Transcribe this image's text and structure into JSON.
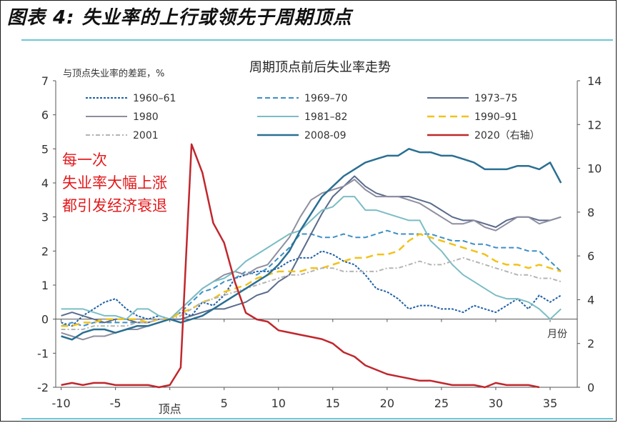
{
  "header": {
    "title": "图表 4: 失业率的上行或领先于周期顶点"
  },
  "chart_data": {
    "type": "line",
    "title": "周期顶点前后失业率走势",
    "ylabel": "与顶点失业率的差距，%",
    "xlabel": "月份",
    "y2label": "",
    "x_tick_labels": [
      "-10",
      "-5",
      "顶点",
      "5",
      "10",
      "15",
      "20",
      "25",
      "30",
      "35"
    ],
    "x_tick_values": [
      -10,
      -5,
      0,
      5,
      10,
      15,
      20,
      25,
      30,
      35
    ],
    "xlim": [
      -10.5,
      37.5
    ],
    "ylim": [
      -2,
      7
    ],
    "y2lim": [
      0,
      14
    ],
    "y_ticks": [
      -2,
      -1,
      0,
      1,
      2,
      3,
      4,
      5,
      6,
      7
    ],
    "y2_ticks": [
      0,
      2,
      4,
      6,
      8,
      10,
      12,
      14
    ],
    "legend_position": "top",
    "annotation": {
      "lines": [
        "每一次",
        "失业率大幅上涨",
        "都引发经济衰退"
      ],
      "color": "#e31a1c"
    },
    "series": [
      {
        "name": "1960–61",
        "color": "#1f5fa6",
        "dash": "3,2",
        "width": 2,
        "axis": "left",
        "x": [
          -10,
          -9,
          -8,
          -7,
          -6,
          -5,
          -4,
          -3,
          -2,
          -1,
          0,
          1,
          2,
          3,
          4,
          5,
          6,
          7,
          8,
          9,
          10,
          11,
          12,
          13,
          14,
          15,
          16,
          17,
          18,
          19,
          20,
          21,
          22,
          23,
          24,
          25,
          26,
          27,
          28,
          29,
          30,
          31,
          32,
          33,
          34,
          35,
          36
        ],
        "y": [
          -0.1,
          -0.2,
          0.1,
          0.3,
          0.5,
          0.6,
          0.3,
          0.1,
          0,
          0.1,
          0,
          0.2,
          0.1,
          0.5,
          0.4,
          0.7,
          1.2,
          1.3,
          1.4,
          1.4,
          1.5,
          1.7,
          1.8,
          1.8,
          2,
          1.9,
          1.7,
          1.6,
          1.3,
          0.9,
          0.8,
          0.6,
          0.3,
          0.4,
          0.4,
          0.3,
          0.3,
          0.2,
          0.4,
          0.3,
          0.2,
          0.4,
          0.6,
          0.3,
          0.7,
          0.5,
          0.7
        ]
      },
      {
        "name": "1969–70",
        "color": "#3d8fc4",
        "dash": "7,4",
        "width": 2,
        "axis": "left",
        "x": [
          -10,
          -9,
          -8,
          -7,
          -6,
          -5,
          -4,
          -3,
          -2,
          -1,
          0,
          1,
          2,
          3,
          4,
          5,
          6,
          7,
          8,
          9,
          10,
          11,
          12,
          13,
          14,
          15,
          16,
          17,
          18,
          19,
          20,
          21,
          22,
          23,
          24,
          25,
          26,
          27,
          28,
          29,
          30,
          31,
          32,
          33,
          34,
          35,
          36
        ],
        "y": [
          -0.2,
          -0.1,
          -0.2,
          -0.1,
          -0.1,
          -0.1,
          -0.1,
          -0.1,
          -0.1,
          0,
          0,
          0.2,
          0.5,
          0.8,
          0.9,
          1.1,
          1.2,
          1.4,
          1.3,
          1.5,
          1.8,
          2.1,
          2.5,
          2.5,
          2.4,
          2.4,
          2.5,
          2.4,
          2.4,
          2.5,
          2.6,
          2.5,
          2.5,
          2.5,
          2.5,
          2.4,
          2.3,
          2.3,
          2.2,
          2.2,
          2.1,
          2.1,
          2.1,
          2,
          2,
          1.7,
          1.4
        ]
      },
      {
        "name": "1973–75",
        "color": "#5a6b8c",
        "dash": "",
        "width": 2,
        "axis": "left",
        "x": [
          -10,
          -9,
          -8,
          -7,
          -6,
          -5,
          -4,
          -3,
          -2,
          -1,
          0,
          1,
          2,
          3,
          4,
          5,
          6,
          7,
          8,
          9,
          10,
          11,
          12,
          13,
          14,
          15,
          16,
          17,
          18,
          19,
          20,
          21,
          22,
          23,
          24,
          25,
          26,
          27,
          28,
          29,
          30,
          31,
          32,
          33,
          34,
          35,
          36
        ],
        "y": [
          0.1,
          0.2,
          0.1,
          0,
          -0.1,
          0,
          0,
          -0.1,
          -0.1,
          0,
          0,
          0,
          0.1,
          0.2,
          0.3,
          0.3,
          0.4,
          0.5,
          0.7,
          0.8,
          1.1,
          1.3,
          1.9,
          2.5,
          3.1,
          3.6,
          3.9,
          4.2,
          3.9,
          3.7,
          3.6,
          3.6,
          3.6,
          3.5,
          3.4,
          3.2,
          3,
          2.9,
          2.9,
          2.8,
          2.7,
          2.9,
          3,
          3,
          2.9,
          2.9,
          3
        ]
      },
      {
        "name": "1980",
        "color": "#8e8ea0",
        "dash": "",
        "width": 2,
        "axis": "left",
        "x": [
          -10,
          -9,
          -8,
          -7,
          -6,
          -5,
          -4,
          -3,
          -2,
          -1,
          0,
          1,
          2,
          3,
          4,
          5,
          6,
          7,
          8,
          9,
          10,
          11,
          12,
          13,
          14,
          15,
          16,
          17,
          18,
          19,
          20,
          21,
          22,
          23,
          24,
          25,
          26,
          27,
          28,
          29,
          30,
          31,
          32,
          33,
          34,
          35,
          36
        ],
        "y": [
          -0.4,
          -0.5,
          -0.6,
          -0.5,
          -0.5,
          -0.4,
          -0.3,
          -0.3,
          -0.2,
          -0.1,
          0,
          0.3,
          0.6,
          0.9,
          1.1,
          1.3,
          1.4,
          1.3,
          1.5,
          1.6,
          2,
          2.4,
          3,
          3.5,
          3.7,
          3.8,
          3.9,
          4.1,
          3.8,
          3.6,
          3.6,
          3.6,
          3.5,
          3.4,
          3.2,
          3,
          2.8,
          2.8,
          2.9,
          2.7,
          2.6,
          2.8,
          3,
          3,
          2.8,
          2.9,
          3
        ]
      },
      {
        "name": "1981–82",
        "color": "#7bbdc4",
        "dash": "",
        "width": 2,
        "axis": "left",
        "x": [
          -10,
          -9,
          -8,
          -7,
          -6,
          -5,
          -4,
          -3,
          -2,
          -1,
          0,
          1,
          2,
          3,
          4,
          5,
          6,
          7,
          8,
          9,
          10,
          11,
          12,
          13,
          14,
          15,
          16,
          17,
          18,
          19,
          20,
          21,
          22,
          23,
          24,
          25,
          26,
          27,
          28,
          29,
          30,
          31,
          32,
          33,
          34,
          35,
          36
        ],
        "y": [
          0.3,
          0.3,
          0.3,
          0.2,
          0.1,
          0.1,
          0,
          0.3,
          0.3,
          0.1,
          0,
          0.3,
          0.6,
          0.9,
          1.1,
          1.2,
          1.4,
          1.7,
          1.9,
          2.1,
          2.3,
          2.5,
          2.6,
          2.9,
          3.2,
          3.3,
          3.6,
          3.6,
          3.2,
          3.2,
          3.1,
          3,
          2.9,
          2.9,
          2.3,
          2,
          1.6,
          1.3,
          1.1,
          0.9,
          0.7,
          0.6,
          0.6,
          0.5,
          0.3,
          0,
          0.3
        ]
      },
      {
        "name": "1990–91",
        "color": "#f2c21a",
        "dash": "10,6",
        "width": 2.5,
        "axis": "left",
        "x": [
          -10,
          -9,
          -8,
          -7,
          -6,
          -5,
          -4,
          -3,
          -2,
          -1,
          0,
          1,
          2,
          3,
          4,
          5,
          6,
          7,
          8,
          9,
          10,
          11,
          12,
          13,
          14,
          15,
          16,
          17,
          18,
          19,
          20,
          21,
          22,
          23,
          24,
          25,
          26,
          27,
          28,
          29,
          30,
          31,
          32,
          33,
          34,
          35,
          36
        ],
        "y": [
          -0.2,
          -0.2,
          -0.1,
          -0.1,
          0,
          0,
          0,
          0,
          -0.1,
          0,
          0,
          0.2,
          0.3,
          0.5,
          0.6,
          0.8,
          0.9,
          1,
          1.2,
          1.3,
          1.4,
          1.4,
          1.4,
          1.5,
          1.5,
          1.6,
          1.7,
          1.8,
          1.8,
          1.9,
          1.9,
          2,
          2.3,
          2.5,
          2.4,
          2.3,
          2.2,
          2.1,
          2,
          1.9,
          1.7,
          1.6,
          1.6,
          1.5,
          1.6,
          1.5,
          1.4
        ]
      },
      {
        "name": "2001",
        "color": "#b4b4b4",
        "dash": "6,3,2,3",
        "width": 2,
        "axis": "left",
        "x": [
          -10,
          -9,
          -8,
          -7,
          -6,
          -5,
          -4,
          -3,
          -2,
          -1,
          0,
          1,
          2,
          3,
          4,
          5,
          6,
          7,
          8,
          9,
          10,
          11,
          12,
          13,
          14,
          15,
          16,
          17,
          18,
          19,
          20,
          21,
          22,
          23,
          24,
          25,
          26,
          27,
          28,
          29,
          30,
          31,
          32,
          33,
          34,
          35,
          36
        ],
        "y": [
          -0.3,
          -0.3,
          -0.3,
          -0.2,
          -0.2,
          -0.2,
          -0.2,
          -0.1,
          -0.1,
          0,
          0,
          0.1,
          0.3,
          0.5,
          0.6,
          0.7,
          0.8,
          0.9,
          1,
          1.1,
          1.2,
          1.3,
          1.3,
          1.4,
          1.5,
          1.5,
          1.4,
          1.4,
          1.4,
          1.4,
          1.5,
          1.5,
          1.6,
          1.7,
          1.6,
          1.6,
          1.7,
          1.8,
          1.7,
          1.6,
          1.5,
          1.4,
          1.3,
          1.3,
          1.2,
          1.2,
          1.1
        ]
      },
      {
        "name": "2008-09",
        "color": "#2a6f93",
        "dash": "",
        "width": 2.5,
        "axis": "left",
        "x": [
          -10,
          -9,
          -8,
          -7,
          -6,
          -5,
          -4,
          -3,
          -2,
          -1,
          0,
          1,
          2,
          3,
          4,
          5,
          6,
          7,
          8,
          9,
          10,
          11,
          12,
          13,
          14,
          15,
          16,
          17,
          18,
          19,
          20,
          21,
          22,
          23,
          24,
          25,
          26,
          27,
          28,
          29,
          30,
          31,
          32,
          33,
          34,
          35,
          36
        ],
        "y": [
          -0.5,
          -0.6,
          -0.4,
          -0.3,
          -0.3,
          -0.4,
          -0.3,
          -0.2,
          -0.2,
          -0.1,
          0,
          -0.1,
          0,
          0.1,
          0.3,
          0.5,
          0.7,
          0.9,
          1.1,
          1.3,
          1.6,
          2,
          2.6,
          3.1,
          3.6,
          3.9,
          4.2,
          4.4,
          4.6,
          4.7,
          4.8,
          4.8,
          5,
          4.9,
          4.9,
          4.8,
          4.8,
          4.7,
          4.6,
          4.4,
          4.4,
          4.4,
          4.5,
          4.5,
          4.4,
          4.6,
          4
        ]
      },
      {
        "name": "2020（右轴）",
        "color": "#c0272d",
        "dash": "",
        "width": 2.5,
        "axis": "right",
        "x": [
          -10,
          -9,
          -8,
          -7,
          -6,
          -5,
          -4,
          -3,
          -2,
          -1,
          0,
          1,
          2,
          3,
          4,
          5,
          6,
          7,
          8,
          9,
          10,
          11,
          12,
          13,
          14,
          15,
          16,
          17,
          18,
          19,
          20,
          21,
          22,
          23,
          24,
          25,
          26,
          27,
          28,
          29,
          30,
          31,
          32,
          33,
          34
        ],
        "y": [
          0.1,
          0.2,
          0.1,
          0.2,
          0.2,
          0.1,
          0.1,
          0.1,
          0.1,
          0,
          0.1,
          0.9,
          11.1,
          9.8,
          7.5,
          6.6,
          4.8,
          3.4,
          3.1,
          3,
          2.6,
          2.5,
          2.4,
          2.3,
          2.2,
          2,
          1.6,
          1.4,
          1,
          0.8,
          0.6,
          0.5,
          0.4,
          0.3,
          0.3,
          0.2,
          0.1,
          0.1,
          0.1,
          0,
          0.2,
          0.1,
          0.1,
          0.1,
          0
        ]
      }
    ]
  }
}
